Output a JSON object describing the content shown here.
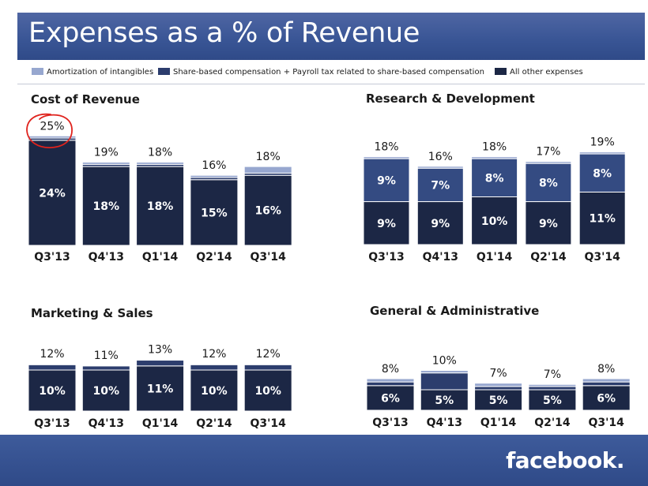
{
  "title": "Expenses as a % of Revenue",
  "logo": "facebook.",
  "colors": {
    "amortization": "#97a7cf",
    "share_based_cost": "#2c3d6d",
    "share_based_rd": "#344b82",
    "other": "#1c2745",
    "separator": "#ffffff",
    "annotation": "#e0231d"
  },
  "legend": {
    "items": [
      {
        "label": "Amortization of intangibles",
        "color": "#97a7cf"
      },
      {
        "label": "Share-based compensation + Payroll tax related to share-based compensation",
        "color": "#2c3d6d"
      },
      {
        "label": "All other expenses",
        "color": "#1c2745"
      }
    ]
  },
  "chart_data": [
    {
      "type": "bar",
      "title": "Cost of Revenue",
      "stacked": true,
      "categories": [
        "Q3'13",
        "Q4'13",
        "Q1'14",
        "Q2'14",
        "Q3'14"
      ],
      "totals": [
        "25%",
        "19%",
        "18%",
        "16%",
        "18%"
      ],
      "series": [
        {
          "name": "All other expenses",
          "values": [
            24,
            18,
            18,
            15,
            16
          ],
          "labels": [
            "24%",
            "18%",
            "18%",
            "15%",
            "16%"
          ]
        },
        {
          "name": "Share-based compensation + Payroll tax related to share-based compensation",
          "values": [
            0.5,
            0.5,
            0.5,
            0.5,
            0.5
          ],
          "labels": []
        },
        {
          "name": "Amortization of intangibles",
          "values": [
            0.5,
            0.5,
            0.5,
            0.5,
            1.5
          ],
          "labels": []
        }
      ]
    },
    {
      "type": "bar",
      "title": "Research & Development",
      "stacked": true,
      "categories": [
        "Q3'13",
        "Q4'13",
        "Q1'14",
        "Q2'14",
        "Q3'14"
      ],
      "totals": [
        "18%",
        "16%",
        "18%",
        "17%",
        "19%"
      ],
      "series": [
        {
          "name": "All other expenses",
          "values": [
            9,
            9,
            10,
            9,
            11
          ],
          "labels": [
            "9%",
            "9%",
            "10%",
            "9%",
            "11%"
          ]
        },
        {
          "name": "Share-based compensation + Payroll tax related to share-based compensation",
          "values": [
            9,
            7,
            8,
            8,
            8
          ],
          "labels": [
            "9%",
            "7%",
            "8%",
            "8%",
            "8%"
          ]
        },
        {
          "name": "Amortization of intangibles",
          "values": [
            0.4,
            0.4,
            0.4,
            0.4,
            0.4
          ],
          "labels": []
        }
      ]
    },
    {
      "type": "bar",
      "title": "Marketing & Sales",
      "stacked": true,
      "categories": [
        "Q3'13",
        "Q4'13",
        "Q1'14",
        "Q2'14",
        "Q3'14"
      ],
      "totals": [
        "12%",
        "11%",
        "13%",
        "12%",
        "12%"
      ],
      "series": [
        {
          "name": "All other expenses",
          "values": [
            10,
            10,
            11,
            10,
            10
          ],
          "labels": [
            "10%",
            "10%",
            "11%",
            "10%",
            "10%"
          ]
        },
        {
          "name": "Share-based compensation + Payroll tax related to share-based compensation",
          "values": [
            1.3,
            1,
            1.4,
            1.3,
            1.3
          ],
          "labels": []
        },
        {
          "name": "Amortization of intangibles",
          "values": [
            0.2,
            0.2,
            0.2,
            0.2,
            0.2
          ],
          "labels": []
        }
      ]
    },
    {
      "type": "bar",
      "title": "General & Administrative",
      "stacked": true,
      "categories": [
        "Q3'13",
        "Q4'13",
        "Q1'14",
        "Q2'14",
        "Q3'14"
      ],
      "totals": [
        "8%",
        "10%",
        "7%",
        "7%",
        "8%"
      ],
      "series": [
        {
          "name": "All other expenses",
          "values": [
            6,
            5,
            5,
            5,
            6
          ],
          "labels": [
            "6%",
            "5%",
            "5%",
            "5%",
            "6%"
          ]
        },
        {
          "name": "Share-based compensation + Payroll tax related to share-based compensation",
          "values": [
            0.9,
            4.1,
            0.8,
            0.8,
            0.9
          ],
          "labels": []
        },
        {
          "name": "Amortization of intangibles",
          "values": [
            0.8,
            0.6,
            0.8,
            0.5,
            0.8
          ],
          "labels": []
        }
      ]
    }
  ]
}
